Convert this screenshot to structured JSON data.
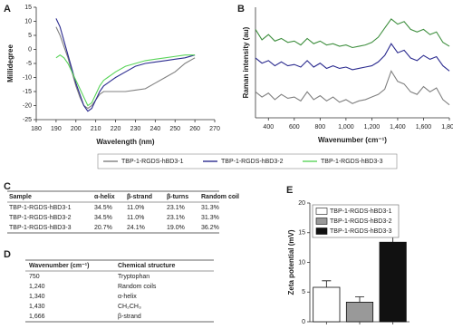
{
  "chart_data": [
    {
      "type": "line",
      "panel": "A",
      "xlabel": "Wavelength (nm)",
      "ylabel": "Millidegree",
      "x": [
        190,
        192,
        194,
        196,
        198,
        200,
        202,
        204,
        206,
        208,
        210,
        212,
        214,
        216,
        218,
        220,
        225,
        230,
        235,
        240,
        245,
        250,
        255,
        260
      ],
      "xlim": [
        180,
        270
      ],
      "xticks": [
        180,
        190,
        200,
        210,
        220,
        230,
        240,
        250,
        260,
        270
      ],
      "ylim": [
        -25,
        15
      ],
      "yticks": [
        -25,
        -20,
        -15,
        -10,
        -5,
        0,
        5,
        10,
        15
      ],
      "legend": "bottom",
      "series": [
        {
          "name": "TBP-1-RGDS-hBD3-1",
          "color": "#808080",
          "values": [
            8,
            5,
            1,
            -3,
            -8,
            -13,
            -17,
            -20,
            -21,
            -20,
            -18,
            -16,
            -15,
            -15,
            -15,
            -15,
            -15,
            -14.5,
            -14,
            -12,
            -10,
            -8,
            -5,
            -3
          ]
        },
        {
          "name": "TBP-1-RGDS-hBD3-2",
          "color": "#2b2b8f",
          "values": [
            11,
            8,
            3,
            -2,
            -7,
            -12,
            -16,
            -20,
            -22,
            -21,
            -18,
            -15,
            -13,
            -12,
            -11,
            -10,
            -8,
            -6,
            -5,
            -4.5,
            -4,
            -3.5,
            -3,
            -2
          ]
        },
        {
          "name": "TBP-1-RGDS-hBD3-3",
          "color": "#5ad45a",
          "values": [
            -3,
            -2,
            -3,
            -5,
            -8,
            -11,
            -14,
            -17,
            -20,
            -19,
            -16,
            -13,
            -11,
            -10,
            -9,
            -8,
            -6,
            -5,
            -4,
            -3.5,
            -3,
            -2.5,
            -2,
            -2
          ]
        }
      ]
    },
    {
      "type": "line",
      "panel": "B",
      "xlabel": "Wavenumber (cm⁻¹)",
      "ylabel": "Raman intensity (au)",
      "x": [
        300,
        350,
        400,
        450,
        500,
        550,
        600,
        650,
        700,
        750,
        800,
        850,
        900,
        950,
        1000,
        1050,
        1100,
        1150,
        1200,
        1250,
        1300,
        1350,
        1400,
        1450,
        1500,
        1550,
        1600,
        1650,
        1700,
        1750,
        1800
      ],
      "xlim": [
        300,
        1800
      ],
      "xticks": [
        400,
        600,
        800,
        {
          "value": 1000,
          "label": "1,000"
        },
        {
          "value": 1200,
          "label": "1,200"
        },
        {
          "value": 1400,
          "label": "1,400"
        },
        {
          "value": 1600,
          "label": "1,600"
        },
        {
          "value": 1800,
          "label": "1,800"
        }
      ],
      "ylim": [
        1,
        9.5
      ],
      "series": [
        {
          "color": "#808080",
          "values": [
            3.0,
            2.6,
            2.9,
            2.4,
            2.8,
            2.5,
            2.6,
            2.3,
            3.0,
            2.4,
            2.7,
            2.3,
            2.6,
            2.2,
            2.4,
            2.1,
            2.3,
            2.4,
            2.6,
            2.8,
            3.2,
            4.6,
            3.8,
            3.6,
            3.0,
            2.8,
            3.4,
            3.0,
            3.3,
            2.4,
            2.0
          ]
        },
        {
          "color": "#2b2b8f",
          "values": [
            5.6,
            5.2,
            5.4,
            5.0,
            5.3,
            5.0,
            5.1,
            4.9,
            5.4,
            4.9,
            5.2,
            4.8,
            5.0,
            4.8,
            4.9,
            4.7,
            4.8,
            4.9,
            5.0,
            5.3,
            5.8,
            6.7,
            6.0,
            6.2,
            5.6,
            5.4,
            5.8,
            5.5,
            5.7,
            5.0,
            4.6
          ]
        },
        {
          "color": "#3f8f3f",
          "values": [
            7.8,
            7.0,
            7.4,
            6.9,
            7.1,
            6.8,
            6.9,
            6.6,
            7.1,
            6.7,
            6.9,
            6.6,
            6.7,
            6.5,
            6.6,
            6.4,
            6.5,
            6.6,
            6.8,
            7.2,
            7.9,
            8.6,
            8.2,
            8.4,
            7.8,
            7.6,
            7.8,
            7.4,
            7.6,
            6.8,
            6.5
          ]
        }
      ]
    },
    {
      "type": "bar",
      "panel": "E",
      "ylabel": "Zeta potential (mV)",
      "ylim": [
        0,
        20
      ],
      "yticks": [
        0,
        5,
        10,
        15,
        20
      ],
      "legend": "upper left",
      "annotation": "*",
      "series": [
        {
          "name": "TBP-1-RGDS-hBD3-1",
          "color": "#ffffff",
          "values": [
            5.8
          ],
          "errors": [
            1.1
          ]
        },
        {
          "name": "TBP-1-RGDS-hBD3-2",
          "color": "#999999",
          "values": [
            3.3
          ],
          "errors": [
            0.9
          ]
        },
        {
          "name": "TBP-1-RGDS-hBD3-3",
          "color": "#111111",
          "values": [
            13.4
          ],
          "errors": [
            2.8
          ]
        }
      ]
    }
  ],
  "tables": [
    {
      "panel": "C",
      "header": [
        "Sample",
        "α-helix",
        "β-strand",
        "β-turns",
        "Random coil"
      ],
      "rows": [
        [
          "TBP-1-RGDS-hBD3-1",
          "34.5%",
          "11.0%",
          "23.1%",
          "31.3%"
        ],
        [
          "TBP-1-RGDS-hBD3-2",
          "34.5%",
          "11.0%",
          "23.1%",
          "31.3%"
        ],
        [
          "TBP-1-RGDS-hBD3-3",
          "20.7%",
          "24.1%",
          "19.0%",
          "36.2%"
        ]
      ]
    },
    {
      "panel": "D",
      "header": [
        "Wavenumber (cm⁻¹)",
        "Chemical structure"
      ],
      "rows": [
        [
          "750",
          "Tryptophan"
        ],
        [
          "1,240",
          "Random coils"
        ],
        [
          "1,340",
          "α-helix"
        ],
        [
          "1,430",
          "CH₂CH₃"
        ],
        [
          "1,666",
          "β-strand"
        ]
      ]
    }
  ]
}
